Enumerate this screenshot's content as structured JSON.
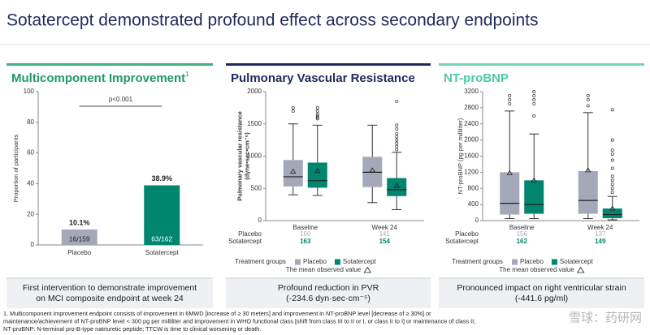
{
  "title": "Sotatercept demonstrated profound effect across secondary endpoints",
  "chart_data": [
    {
      "type": "bar",
      "title": "Multicomponent Improvement",
      "title_note": "1",
      "ylabel": [
        "Proportion of participants"
      ],
      "categories": [
        "Placebo",
        "Sotatercept"
      ],
      "values": [
        10.1,
        38.9
      ],
      "value_labels": [
        "10.1%",
        "38.9%"
      ],
      "inner_labels": [
        "16/159",
        "63/162"
      ],
      "colors": [
        "#a5a8b8",
        "#00856f"
      ],
      "ylim": [
        0,
        100
      ],
      "yticks": [
        0,
        20,
        40,
        60,
        80,
        100
      ],
      "annotation": "p<0.001",
      "grid": false,
      "caption": [
        "First intervention to demonstrate improvement",
        "on MCI composite endpoint at week 24"
      ]
    },
    {
      "type": "box",
      "title": "Pulmonary Vascular Resistance",
      "ylabel": [
        "Pulmonary vascular resistance",
        "(dyne•sec•cm⁻⁵)"
      ],
      "categories": [
        "Baseline",
        "Week 24"
      ],
      "ylim": [
        0,
        2000
      ],
      "yticks": [
        0,
        500,
        1000,
        1500,
        2000
      ],
      "grid": false,
      "series": [
        {
          "name": "Placebo",
          "color": "#a5a8b8",
          "counts": [
            160,
            141
          ],
          "boxes": [
            {
              "low": 400,
              "q1": 530,
              "median": 680,
              "q3": 940,
              "high": 1500,
              "mean": 760,
              "outliers": [
                1700,
                1750
              ]
            },
            {
              "low": 280,
              "q1": 520,
              "median": 750,
              "q3": 990,
              "high": 1480,
              "mean": 780,
              "outliers": []
            }
          ]
        },
        {
          "name": "Sotatercept",
          "color": "#00856f",
          "counts": [
            163,
            154
          ],
          "boxes": [
            {
              "low": 390,
              "q1": 510,
              "median": 620,
              "q3": 900,
              "high": 1480,
              "mean": 770,
              "outliers": [
                1580,
                1600,
                1620,
                1650,
                1700,
                1750
              ]
            },
            {
              "low": 170,
              "q1": 380,
              "median": 480,
              "q3": 660,
              "high": 1060,
              "mean": 540,
              "outliers": [
                1100,
                1150,
                1200,
                1250,
                1300,
                1350,
                1420,
                1480,
                1850
              ]
            }
          ]
        }
      ],
      "legend_title": "Treatment groups",
      "mean_label": "The mean observed value",
      "caption": [
        "Profound reduction in PVR",
        "(-234.6 dyn·sec·cm⁻⁵)"
      ]
    },
    {
      "type": "box",
      "title": "NT-proBNP",
      "ylabel": [
        "NT-proBNP (pg per milliliter)"
      ],
      "categories": [
        "Baseline",
        "Week 24"
      ],
      "ylim": [
        0,
        3200
      ],
      "yticks": [
        0,
        400,
        800,
        1200,
        1600,
        2000,
        2400,
        2800,
        3200
      ],
      "grid": false,
      "series": [
        {
          "name": "Placebo",
          "color": "#a5a8b8",
          "counts": [
            156,
            137
          ],
          "boxes": [
            {
              "low": 50,
              "q1": 150,
              "median": 430,
              "q3": 1200,
              "high": 2720,
              "mean": 1180,
              "outliers": [
                2900,
                3000,
                3100
              ]
            },
            {
              "low": 50,
              "q1": 170,
              "median": 500,
              "q3": 1230,
              "high": 2680,
              "mean": 1250,
              "outliers": [
                2850,
                3000,
                3100
              ]
            }
          ]
        },
        {
          "name": "Sotatercept",
          "color": "#00856f",
          "counts": [
            162,
            149
          ],
          "boxes": [
            {
              "low": 50,
              "q1": 170,
              "median": 400,
              "q3": 1000,
              "high": 2150,
              "mean": 1000,
              "outliers": [
                2600,
                2900,
                3000,
                3100,
                3200
              ]
            },
            {
              "low": 20,
              "q1": 60,
              "median": 150,
              "q3": 300,
              "high": 600,
              "mean": 300,
              "outliers": [
                700,
                800,
                900,
                1000,
                1100,
                1300,
                1500,
                1650,
                1750,
                2000,
                2750
              ]
            }
          ]
        }
      ],
      "legend_title": "Treatment groups",
      "mean_label": "The mean observed value",
      "caption": [
        "Pronounced impact on right ventricular strain",
        "(-441.6 pg/ml)"
      ]
    }
  ],
  "footnotes": [
    "1. Multicomponent improvement endpoint consists of improvement in 6MWD [increase of ≥ 30 meters] and improvement in NT-proBNP level [decrease of ≥ 30%] or",
    "maintenance/achievement of NT-proBNP level < 300 pg per milliliter and improvement in WHO functional class [shift from class III to II or I, or class II to I] or maintenance of class II;",
    "NT-proBNP: N-terminal pro-B-type natriuretic peptide; TTCW is time to clinical worsening or death."
  ],
  "watermark": "雪球：药研网"
}
